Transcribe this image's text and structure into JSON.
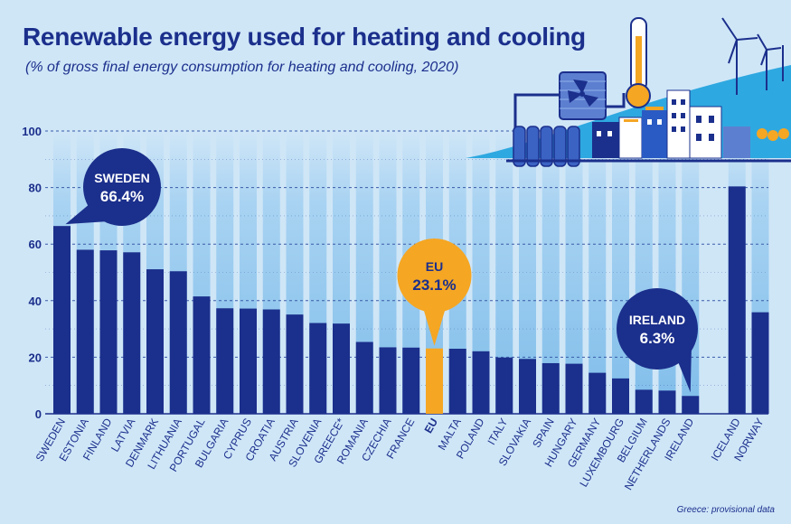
{
  "chart_data": {
    "type": "bar",
    "title": "Renewable energy used for heating and cooling",
    "subtitle": "(% of gross final energy consumption for heating and cooling, 2020)",
    "ylim": [
      0,
      100
    ],
    "yticks": [
      0,
      20,
      40,
      60,
      80,
      100
    ],
    "categories": [
      "SWEDEN",
      "ESTONIA",
      "FINLAND",
      "LATVIA",
      "DENMARK",
      "LITHUANIA",
      "PORTUGAL",
      "BULGARIA",
      "CYPRUS",
      "CROATIA",
      "AUSTRIA",
      "SLOVENIA",
      "GREECE*",
      "ROMANIA",
      "CZECHIA",
      "FRANCE",
      "EU",
      "MALTA",
      "POLAND",
      "ITALY",
      "SLOVAKIA",
      "SPAIN",
      "HUNGARY",
      "GERMANY",
      "LUXEMBOURG",
      "BELGIUM",
      "NETHERLANDS",
      "IRELAND",
      "",
      "ICELAND",
      "NORWAY"
    ],
    "values": [
      66.4,
      58.0,
      57.8,
      57.1,
      51.1,
      50.4,
      41.5,
      37.3,
      37.2,
      36.9,
      35.1,
      32.1,
      31.9,
      25.4,
      23.5,
      23.4,
      23.1,
      23.0,
      22.1,
      19.9,
      19.4,
      17.9,
      17.7,
      14.5,
      12.5,
      8.5,
      8.2,
      6.3,
      null,
      80.4,
      35.9
    ],
    "highlight": "EU",
    "callouts": [
      {
        "category": "SWEDEN",
        "name": "SWEDEN",
        "value": "66.4%"
      },
      {
        "category": "EU",
        "name": "EU",
        "value": "23.1%"
      },
      {
        "category": "IRELAND",
        "name": "IRELAND",
        "value": "6.3%"
      }
    ],
    "note": "Greece: provisional data"
  },
  "colors": {
    "background": "#cfe6f7",
    "bar": "#1b2f8c",
    "highlight": "#f5a623",
    "column_bg": "#8dc3ec",
    "gridline": "#3a5ba8",
    "text": "#1b2f8c"
  }
}
